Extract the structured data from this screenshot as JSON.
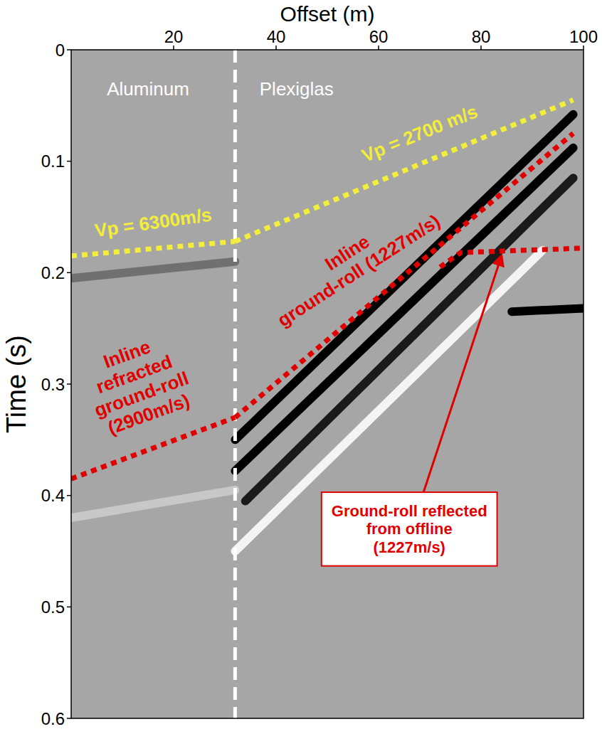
{
  "chart_data": {
    "type": "line",
    "xlabel": "Offset (m)",
    "ylabel": "Time (s)",
    "xlim": [
      0,
      100
    ],
    "ylim": [
      0,
      0.6
    ],
    "xticks": [
      20,
      40,
      60,
      80,
      100
    ],
    "yticks": [
      0,
      0.1,
      0.2,
      0.3,
      0.4,
      0.5,
      0.6
    ],
    "boundary_x": 32,
    "series": [
      {
        "color": "#f2ee3a",
        "line_style": "dotted",
        "x": [
          0,
          32
        ],
        "values": [
          0.185,
          0.172
        ]
      },
      {
        "color": "#f2ee3a",
        "line_style": "dotted",
        "x": [
          32,
          98
        ],
        "values": [
          0.172,
          0.045
        ]
      },
      {
        "color": "#e00000",
        "line_style": "dotted",
        "x": [
          0,
          32
        ],
        "values": [
          0.385,
          0.33
        ]
      },
      {
        "color": "#e00000",
        "line_style": "dotted",
        "x": [
          32,
          98
        ],
        "values": [
          0.33,
          0.075
        ]
      },
      {
        "color": "#e00000",
        "line_style": "dotted",
        "x": [
          72,
          76,
          100
        ],
        "values": [
          0.195,
          0.182,
          0.178
        ]
      }
    ],
    "events": [
      {
        "x": [
          32,
          98
        ],
        "y": [
          0.35,
          0.058
        ],
        "color": "#000000"
      },
      {
        "x": [
          32,
          98
        ],
        "y": [
          0.378,
          0.088
        ],
        "color": "#000000"
      },
      {
        "x": [
          34,
          98
        ],
        "y": [
          0.405,
          0.115
        ],
        "color": "#1a1a1a"
      },
      {
        "x": [
          32,
          92
        ],
        "y": [
          0.45,
          0.18
        ],
        "color": "#f4f4f4"
      },
      {
        "x": [
          86,
          100
        ],
        "y": [
          0.235,
          0.232
        ],
        "color": "#000000"
      },
      {
        "x": [
          0,
          32
        ],
        "y": [
          0.205,
          0.19
        ],
        "color": "#707070"
      },
      {
        "x": [
          0,
          32
        ],
        "y": [
          0.42,
          0.395
        ],
        "color": "#c8c8c8"
      }
    ],
    "annotations": [
      {
        "lines": [
          "Aluminum"
        ],
        "color": "#ffffff",
        "x": 15,
        "y": 0.035
      },
      {
        "lines": [
          "Plexiglas"
        ],
        "color": "#ffffff",
        "x": 44,
        "y": 0.035
      },
      {
        "lines": [
          "Vp = 6300m/s"
        ],
        "color": "#f2ee3a",
        "x": 16,
        "y": 0.155
      },
      {
        "lines": [
          "Vp = 2700 m/s"
        ],
        "color": "#f2ee3a",
        "x": 68,
        "y": 0.075
      },
      {
        "lines": [
          "Inline",
          "refracted",
          "ground-roll",
          "(2900m/s)"
        ],
        "color": "#e00000",
        "x": 13,
        "y": 0.3
      },
      {
        "lines": [
          "Inline",
          "ground-roll (1227m/s)"
        ],
        "color": "#e00000",
        "x": 55,
        "y": 0.19
      },
      {
        "lines": [
          "Ground-roll reflected",
          "from offline",
          "(1227m/s)"
        ],
        "color": "#e00000",
        "x": 66,
        "y": 0.43,
        "arrow_to": [
          84,
          0.185
        ]
      }
    ]
  }
}
